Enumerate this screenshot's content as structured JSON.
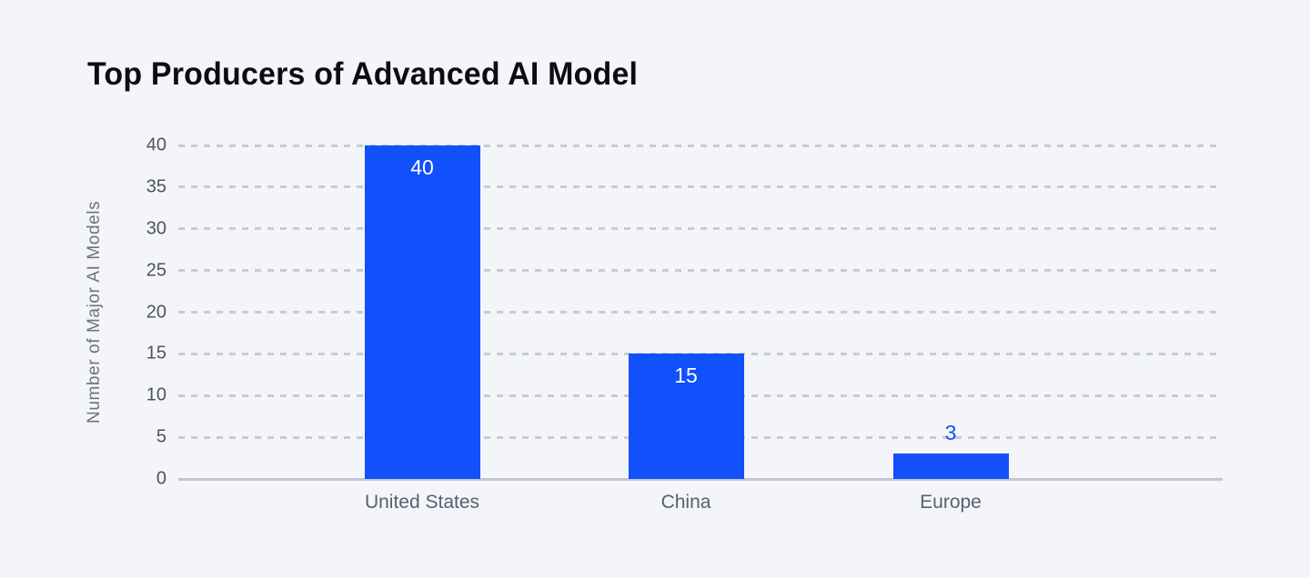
{
  "page": {
    "background_color": "#f4f5f9"
  },
  "chart_data": {
    "type": "bar",
    "title": "Top Producers of Advanced AI Model",
    "ylabel": "Number of Major AI Models",
    "xlabel": "",
    "categories": [
      "United States",
      "China",
      "Europe"
    ],
    "values": [
      40,
      15,
      3
    ],
    "value_labels": [
      "40",
      "15",
      "3"
    ],
    "value_label_positions": [
      "inside",
      "inside",
      "above"
    ],
    "value_label_colors": [
      "#ffffff",
      "#ffffff",
      "#1150fa"
    ],
    "ylim": [
      0,
      40
    ],
    "yticks": [
      0,
      5,
      10,
      15,
      20,
      25,
      30,
      35,
      40
    ],
    "grid": "horizontal-dashed",
    "legend": "none",
    "bar_color": "#1150fa",
    "grid_color": "#c6cbd7",
    "axis_line_color": "#c2c7d3",
    "tick_label_color": "#4d5261",
    "category_label_color": "#5a5f70",
    "ylabel_color": "#6e7382",
    "title_color": "#0c0d10"
  }
}
